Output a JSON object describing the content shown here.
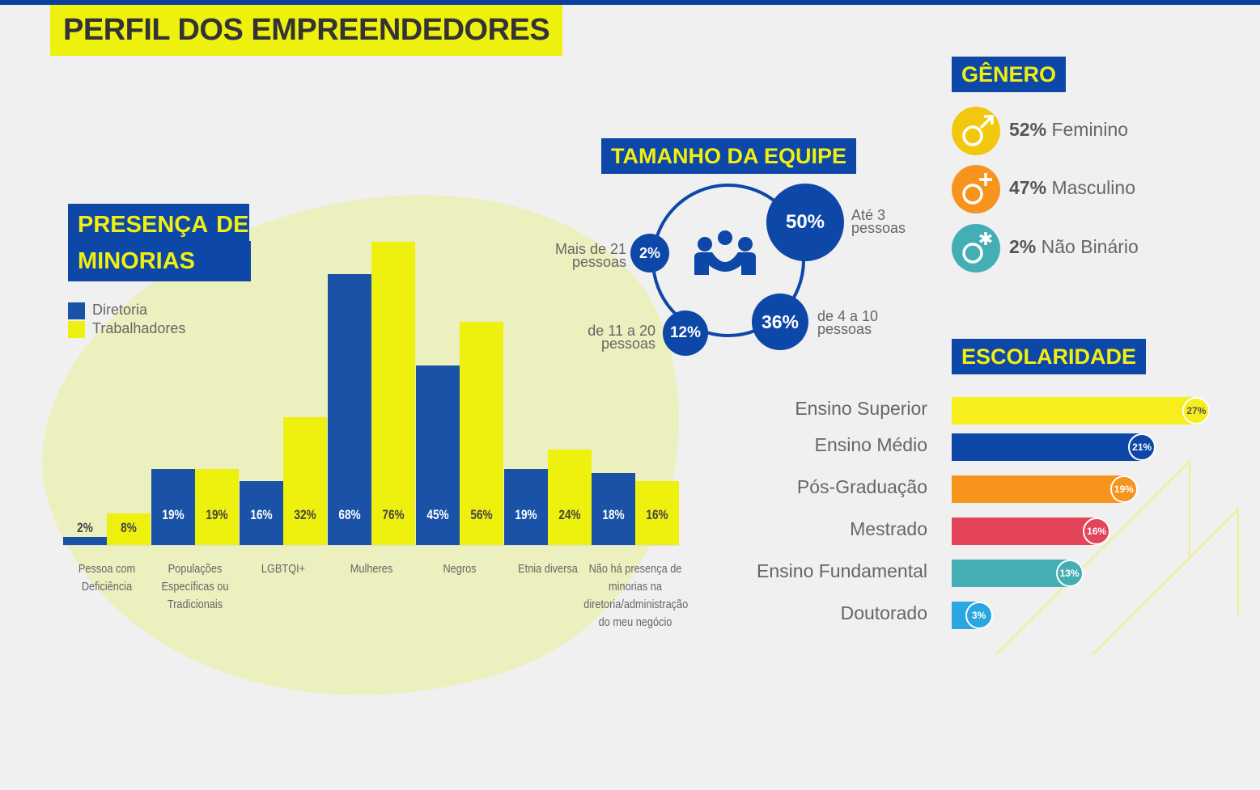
{
  "title": "PERFIL DOS EMPREENDEDORES",
  "chart_data": [
    {
      "type": "bar",
      "title": "PRESENÇA DE MINORIAS",
      "categories": [
        "Pessoa com Deficiência",
        "Populações Específicas ou Tradicionais",
        "LGBTQI+",
        "Mulheres",
        "Negros",
        "Etnia diversa",
        "Não há presença de minorias na diretoria/administração do meu negócio"
      ],
      "series": [
        {
          "name": "Diretoria",
          "color": "#1a52a8",
          "values": [
            2,
            19,
            16,
            68,
            45,
            19,
            18
          ]
        },
        {
          "name": "Trabalhadores",
          "color": "#eef00e",
          "values": [
            8,
            19,
            32,
            76,
            56,
            24,
            16
          ]
        }
      ],
      "value_labels": [
        [
          "2%",
          "19%",
          "16%",
          "68%",
          "45%",
          "19%",
          "18%"
        ],
        [
          "8%",
          "19%",
          "32%",
          "76%",
          "56%",
          "24%",
          "16%"
        ]
      ],
      "legend": "top-left",
      "grid": false
    },
    {
      "type": "bubble",
      "title": "TAMANHO DA EQUIPE",
      "items": [
        {
          "label": "Até 3 pessoas",
          "line1": "Até 3",
          "line2": "pessoas",
          "value": "50%"
        },
        {
          "label": "de 4 a 10 pessoas",
          "line1": "de 4 a 10",
          "line2": "pessoas",
          "value": "36%"
        },
        {
          "label": "de 11 a 20 pessoas",
          "line1": "de 11 a 20",
          "line2": "pessoas",
          "value": "12%"
        },
        {
          "label": "Mais de 21 pessoas",
          "line1": "Mais de 21",
          "line2": "pessoas",
          "value": "2%"
        }
      ],
      "icon": "team-icon",
      "color": "#0d47a8"
    },
    {
      "type": "pictogram",
      "title": "GÊNERO",
      "items": [
        {
          "pct": "52%",
          "label": "Feminino",
          "color": "#f2c80f",
          "icon": "male-symbol-icon"
        },
        {
          "pct": "47%",
          "label": "Masculino",
          "color": "#f7941d",
          "icon": "male-female-symbol-icon"
        },
        {
          "pct": "2%",
          "label": "Não Binário",
          "color": "#43afb5",
          "icon": "nonbinary-symbol-icon"
        }
      ]
    },
    {
      "type": "bar",
      "orientation": "horizontal",
      "title": "ESCOLARIDADE",
      "categories": [
        "Ensino Superior",
        "Ensino Médio",
        "Pós-Graduação",
        "Mestrado",
        "Ensino Fundamental",
        "Doutorado"
      ],
      "values": [
        27,
        21,
        19,
        16,
        13,
        3
      ],
      "value_labels": [
        "27%",
        "21%",
        "19%",
        "16%",
        "13%",
        "3%"
      ],
      "colors": [
        "#f8ee1e",
        "#0d47a8",
        "#f7941d",
        "#e4445a",
        "#43afb5",
        "#2aa6e0"
      ]
    }
  ]
}
